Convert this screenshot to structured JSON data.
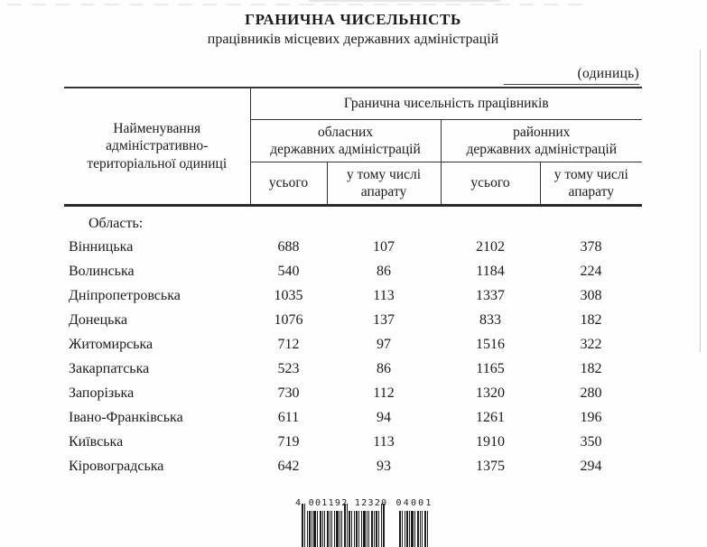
{
  "page": {
    "title": "ГРАНИЧНА ЧИСЕЛЬНІСТЬ",
    "subtitle": "працівників місцевих державних адміністрацій",
    "units_note": "(одиниць)"
  },
  "table": {
    "name_header": "Найменування адміністративно-територіальної одиниці",
    "group_header": "Гранична чисельність працівників",
    "subgroups": [
      {
        "lines": [
          "обласних",
          "державних адміністрацій"
        ]
      },
      {
        "lines": [
          "районних",
          "державних адміністрацій"
        ]
      }
    ],
    "sub_columns": [
      "усього",
      "у тому числі апарату",
      "усього",
      "у тому числі апарату"
    ],
    "section_label": "Область:",
    "rows": [
      {
        "name": "Вінницька",
        "values": [
          "688",
          "107",
          "2102",
          "378"
        ]
      },
      {
        "name": "Волинська",
        "values": [
          "540",
          "86",
          "1184",
          "224"
        ]
      },
      {
        "name": "Дніпропетровська",
        "values": [
          "1035",
          "113",
          "1337",
          "308"
        ]
      },
      {
        "name": "Донецька",
        "values": [
          "1076",
          "137",
          "833",
          "182"
        ]
      },
      {
        "name": "Житомирська",
        "values": [
          "712",
          "97",
          "1516",
          "322"
        ]
      },
      {
        "name": "Закарпатська",
        "values": [
          "523",
          "86",
          "1165",
          "182"
        ]
      },
      {
        "name": "Запорізька",
        "values": [
          "730",
          "112",
          "1320",
          "280"
        ]
      },
      {
        "name": "Івано-Франківська",
        "values": [
          "611",
          "94",
          "1261",
          "196"
        ]
      },
      {
        "name": "Київська",
        "values": [
          "719",
          "113",
          "1910",
          "350"
        ]
      },
      {
        "name": "Кіровоградська",
        "values": [
          "642",
          "93",
          "1375",
          "294"
        ]
      }
    ]
  },
  "barcode": {
    "main_text": "4 001192 12320",
    "addon_text": "04001"
  }
}
